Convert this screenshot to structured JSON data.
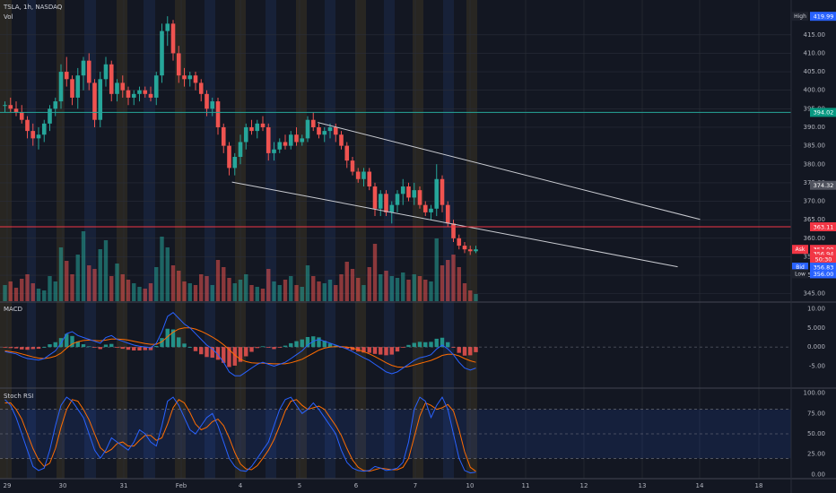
{
  "header": {
    "symbol_line": "TSLA, 1h, NASDAQ",
    "vol_label": "Vol"
  },
  "panes": {
    "macd_label": "MACD",
    "stoch_label": "Stoch RSI"
  },
  "colors": {
    "background": "#131722",
    "up": "#26a69a",
    "down": "#ef5350",
    "grid": "#2a2e39",
    "axis_text": "#b2b5be",
    "macd_line": "#2962ff",
    "signal_line": "#ff6d00",
    "session_orange": "#3b3322",
    "session_blue": "#1b2a4a",
    "resistance_line": "#26a69a",
    "support_line": "#f23645",
    "channel_line": "#c9cbd1"
  },
  "chart_data": [
    {
      "type": "candlestick",
      "title": "TSLA, 1h, NASDAQ",
      "x_axis_ticks": [
        "29",
        "30",
        "31",
        "Feb",
        "4",
        "5",
        "6",
        "7",
        "10",
        "11",
        "12",
        "13",
        "14",
        "18"
      ],
      "y_ticks": [
        345,
        350,
        355,
        360,
        365,
        370,
        375,
        380,
        385,
        390,
        395,
        400,
        405,
        410,
        415
      ],
      "ylim": [
        343,
        421
      ],
      "grid": true,
      "price_labels": [
        {
          "label": "High",
          "value": "419.99",
          "price": 419.99,
          "style": "high"
        },
        {
          "label": "",
          "value": "394.02",
          "price": 394.02,
          "style": "green"
        },
        {
          "label": "",
          "value": "374.32",
          "price": 374.32,
          "style": "gray"
        },
        {
          "label": "",
          "value": "363.11",
          "price": 363.11,
          "style": "red"
        },
        {
          "label": "Ask",
          "value": "357.00",
          "price": 357.0,
          "style": "ask"
        },
        {
          "label": "",
          "value": "356.94",
          "price": 355.8,
          "style": "redsub"
        },
        {
          "label": "",
          "value": "50:30",
          "price": 354.3,
          "style": "redsub"
        },
        {
          "label": "Bid",
          "value": "356.83",
          "price": 352.2,
          "style": "bid"
        },
        {
          "label": "Low",
          "value": "356.00",
          "price": 350.4,
          "style": "low"
        }
      ],
      "candles": [
        [
          396,
          397,
          394,
          396
        ],
        [
          396,
          398,
          394,
          395
        ],
        [
          395,
          397,
          393,
          394
        ],
        [
          394,
          396,
          391,
          392
        ],
        [
          392,
          393,
          387,
          389
        ],
        [
          389,
          391,
          385,
          387
        ],
        [
          387,
          390,
          384,
          388
        ],
        [
          388,
          392,
          386,
          391
        ],
        [
          391,
          396,
          389,
          395
        ],
        [
          395,
          398,
          393,
          397
        ],
        [
          397,
          407,
          395,
          405
        ],
        [
          405,
          409,
          401,
          403
        ],
        [
          403,
          404,
          396,
          398
        ],
        [
          398,
          406,
          395,
          404
        ],
        [
          404,
          409,
          400,
          408
        ],
        [
          408,
          410,
          400,
          402
        ],
        [
          402,
          403,
          390,
          392
        ],
        [
          392,
          405,
          390,
          403
        ],
        [
          403,
          409,
          401,
          407
        ],
        [
          407,
          408,
          397,
          399
        ],
        [
          399,
          403,
          397,
          402
        ],
        [
          402,
          404,
          398,
          400
        ],
        [
          400,
          401,
          396,
          398
        ],
        [
          398,
          400,
          396,
          399
        ],
        [
          399,
          401,
          397,
          400
        ],
        [
          400,
          401,
          398,
          399
        ],
        [
          399,
          401,
          397,
          398
        ],
        [
          398,
          405,
          396,
          404
        ],
        [
          404,
          418,
          402,
          416
        ],
        [
          416,
          420,
          412,
          418
        ],
        [
          418,
          419,
          408,
          410
        ],
        [
          410,
          412,
          402,
          404
        ],
        [
          404,
          406,
          401,
          403
        ],
        [
          403,
          405,
          401,
          404
        ],
        [
          404,
          405,
          400,
          402
        ],
        [
          402,
          403,
          397,
          399
        ],
        [
          399,
          400,
          393,
          395
        ],
        [
          395,
          398,
          393,
          397
        ],
        [
          397,
          398,
          388,
          390
        ],
        [
          390,
          391,
          383,
          385
        ],
        [
          385,
          386,
          377,
          379
        ],
        [
          379,
          383,
          377,
          382
        ],
        [
          382,
          388,
          380,
          386
        ],
        [
          386,
          391,
          384,
          390
        ],
        [
          390,
          392,
          388,
          389
        ],
        [
          389,
          392,
          387,
          391
        ],
        [
          391,
          393,
          389,
          390
        ],
        [
          390,
          391,
          381,
          383
        ],
        [
          383,
          386,
          381,
          384
        ],
        [
          384,
          387,
          383,
          386
        ],
        [
          386,
          388,
          384,
          385
        ],
        [
          385,
          389,
          384,
          388
        ],
        [
          388,
          390,
          385,
          386
        ],
        [
          386,
          388,
          385,
          387
        ],
        [
          387,
          393,
          386,
          392
        ],
        [
          392,
          394,
          389,
          390
        ],
        [
          390,
          391,
          387,
          388
        ],
        [
          388,
          390,
          386,
          389
        ],
        [
          389,
          391,
          387,
          390
        ],
        [
          390,
          391,
          386,
          388
        ],
        [
          388,
          389,
          384,
          385
        ],
        [
          385,
          386,
          379,
          381
        ],
        [
          381,
          382,
          377,
          378
        ],
        [
          378,
          379,
          375,
          376
        ],
        [
          376,
          379,
          374,
          378
        ],
        [
          378,
          379,
          373,
          374
        ],
        [
          374,
          375,
          366,
          368
        ],
        [
          368,
          373,
          366,
          372
        ],
        [
          372,
          373,
          366,
          367
        ],
        [
          367,
          370,
          364,
          369
        ],
        [
          369,
          373,
          367,
          372
        ],
        [
          372,
          376,
          369,
          374
        ],
        [
          374,
          375,
          370,
          371
        ],
        [
          371,
          375,
          369,
          373
        ],
        [
          373,
          374,
          368,
          369
        ],
        [
          369,
          370,
          366,
          367
        ],
        [
          367,
          369,
          365,
          368
        ],
        [
          368,
          380,
          366,
          376
        ],
        [
          376,
          377,
          367,
          369
        ],
        [
          369,
          370,
          363,
          364
        ],
        [
          364,
          365,
          359,
          360
        ],
        [
          360,
          361,
          357,
          358
        ],
        [
          358,
          359,
          356,
          357
        ],
        [
          357,
          358,
          355.5,
          356.5
        ],
        [
          356.5,
          358,
          356,
          357
        ]
      ],
      "volume": [
        18,
        22,
        15,
        25,
        30,
        20,
        14,
        12,
        28,
        22,
        60,
        45,
        30,
        52,
        78,
        40,
        36,
        58,
        68,
        28,
        42,
        30,
        24,
        20,
        16,
        14,
        20,
        38,
        72,
        60,
        40,
        34,
        22,
        20,
        18,
        30,
        28,
        18,
        46,
        38,
        26,
        20,
        24,
        30,
        18,
        16,
        14,
        36,
        22,
        18,
        24,
        28,
        18,
        16,
        40,
        28,
        22,
        20,
        24,
        18,
        30,
        44,
        36,
        26,
        18,
        38,
        64,
        30,
        34,
        28,
        26,
        32,
        24,
        30,
        28,
        24,
        22,
        70,
        40,
        46,
        52,
        38,
        20,
        12,
        8
      ],
      "annotations": [
        {
          "type": "trendline",
          "from": [
            55.8,
            391.3
          ],
          "to": [
            124,
            365.1
          ]
        },
        {
          "type": "trendline",
          "from": [
            40.5,
            375.2
          ],
          "to": [
            120,
            352.3
          ]
        },
        {
          "type": "hline",
          "price": 394.02
        },
        {
          "type": "hline",
          "price": 363.11
        }
      ]
    },
    {
      "type": "line",
      "title": "MACD",
      "y_ticks": [
        10.0,
        5.0,
        0.0,
        -5.0
      ],
      "y_tick_labels": [
        "10.00",
        "5.000",
        "0.000",
        "-5.00"
      ],
      "ylim": [
        -10.5,
        11.5
      ],
      "series": [
        {
          "values": [
            -1.2,
            -1.5,
            -1.8,
            -2.5,
            -3.0,
            -3.2,
            -3.4,
            -3.0,
            -2.0,
            -1.0,
            1.0,
            3.5,
            4.0,
            3.0,
            2.5,
            2.0,
            1.5,
            1.0,
            2.5,
            3.0,
            2.0,
            1.5,
            1.0,
            0.5,
            0.2,
            0.0,
            -0.2,
            1.0,
            4.0,
            8.0,
            9.0,
            7.5,
            6.0,
            5.0,
            3.5,
            2.0,
            0.5,
            -0.5,
            -2.0,
            -4.0,
            -6.5,
            -7.5,
            -7.5,
            -6.5,
            -5.5,
            -4.5,
            -4.0,
            -4.5,
            -5.0,
            -4.5,
            -4.0,
            -3.0,
            -2.0,
            -1.0,
            0.5,
            1.5,
            2.0,
            1.5,
            1.0,
            0.5,
            0.0,
            -0.5,
            -1.2,
            -2.0,
            -2.8,
            -3.5,
            -4.5,
            -5.5,
            -6.5,
            -7.0,
            -6.5,
            -5.5,
            -4.5,
            -3.5,
            -2.8,
            -2.5,
            -2.0,
            -0.5,
            0.5,
            -0.5,
            -2.0,
            -4.0,
            -5.5,
            -6.0,
            -5.5
          ]
        },
        {
          "values": [
            -1.0,
            -1.2,
            -1.4,
            -1.8,
            -2.2,
            -2.6,
            -2.9,
            -3.0,
            -2.8,
            -2.4,
            -1.6,
            -0.3,
            0.8,
            1.4,
            1.7,
            1.8,
            1.7,
            1.6,
            1.8,
            2.1,
            2.1,
            2.0,
            1.8,
            1.5,
            1.2,
            0.9,
            0.7,
            0.7,
            1.4,
            2.7,
            3.9,
            4.7,
            5.0,
            5.0,
            4.7,
            4.1,
            3.4,
            2.6,
            1.7,
            0.6,
            -0.7,
            -2.1,
            -3.2,
            -3.8,
            -4.1,
            -4.2,
            -4.2,
            -4.3,
            -4.4,
            -4.4,
            -4.4,
            -4.1,
            -3.7,
            -3.2,
            -2.4,
            -1.6,
            -0.8,
            -0.3,
            0.0,
            0.1,
            0.1,
            0.0,
            -0.3,
            -0.7,
            -1.2,
            -1.8,
            -2.5,
            -3.3,
            -4.1,
            -4.8,
            -5.2,
            -5.3,
            -5.1,
            -4.7,
            -4.3,
            -3.9,
            -3.5,
            -2.9,
            -2.2,
            -1.9,
            -1.9,
            -2.3,
            -3.0,
            -3.6,
            -4.0
          ]
        }
      ]
    },
    {
      "type": "line",
      "title": "Stoch RSI",
      "y_ticks": [
        100,
        75,
        50,
        25,
        0
      ],
      "y_tick_labels": [
        "100.00",
        "75.00",
        "50.00",
        "25.00",
        "0.00"
      ],
      "ylim": [
        -5,
        105
      ],
      "series": [
        {
          "values": [
            92,
            85,
            70,
            50,
            30,
            10,
            5,
            8,
            30,
            60,
            85,
            95,
            90,
            80,
            70,
            50,
            30,
            20,
            30,
            45,
            40,
            35,
            30,
            40,
            55,
            50,
            40,
            35,
            60,
            90,
            95,
            85,
            70,
            55,
            50,
            60,
            70,
            75,
            60,
            40,
            20,
            10,
            5,
            4,
            10,
            20,
            30,
            40,
            60,
            80,
            92,
            95,
            85,
            75,
            80,
            88,
            80,
            70,
            60,
            50,
            30,
            15,
            8,
            5,
            4,
            5,
            10,
            8,
            5,
            6,
            8,
            15,
            40,
            80,
            95,
            90,
            70,
            85,
            95,
            80,
            50,
            20,
            5,
            2,
            3
          ]
        },
        {
          "values": [
            88,
            88,
            80,
            68,
            50,
            32,
            18,
            10,
            14,
            32,
            58,
            80,
            92,
            90,
            80,
            67,
            50,
            33,
            27,
            31,
            38,
            40,
            35,
            35,
            42,
            48,
            48,
            42,
            45,
            62,
            82,
            92,
            88,
            76,
            62,
            55,
            58,
            65,
            68,
            60,
            45,
            27,
            13,
            7,
            6,
            11,
            20,
            30,
            43,
            60,
            78,
            90,
            92,
            85,
            80,
            82,
            84,
            80,
            70,
            60,
            48,
            32,
            18,
            9,
            5,
            4,
            6,
            8,
            7,
            6,
            6,
            9,
            20,
            46,
            72,
            88,
            85,
            80,
            82,
            86,
            78,
            55,
            28,
            9,
            4
          ]
        }
      ],
      "bands": [
        80,
        20
      ]
    }
  ]
}
